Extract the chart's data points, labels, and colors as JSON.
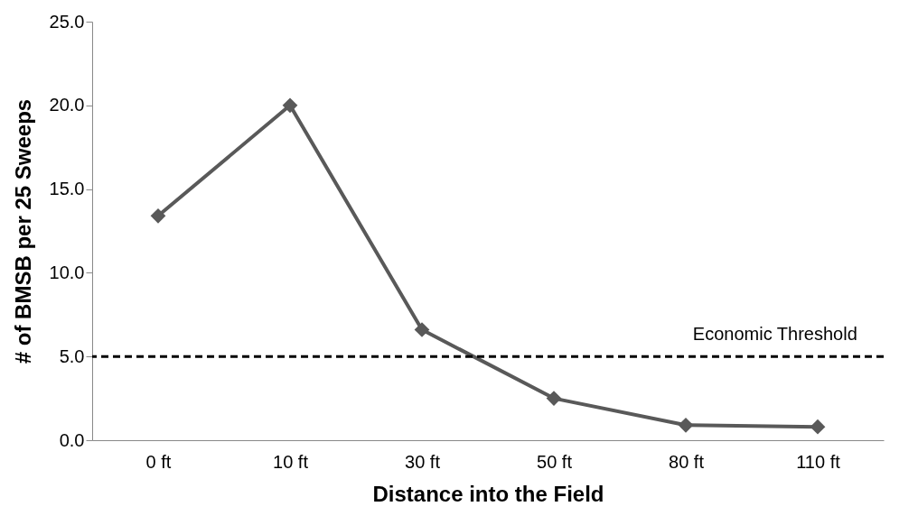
{
  "chart_data": {
    "type": "line",
    "xlabel": "Distance into the Field",
    "ylabel": "# of BMSB per 25 Sweeps",
    "categories": [
      "0 ft",
      "10 ft",
      "30 ft",
      "50 ft",
      "80 ft",
      "110 ft"
    ],
    "series": [
      {
        "color": "#595959",
        "values": [
          13.4,
          20.0,
          6.6,
          2.5,
          0.9,
          0.8
        ]
      }
    ],
    "ylim": [
      0,
      25
    ],
    "yticks": [
      {
        "value": 0,
        "label": "0.0"
      },
      {
        "value": 5,
        "label": "5.0"
      },
      {
        "value": 10,
        "label": "10.0"
      },
      {
        "value": 15,
        "label": "15.0"
      },
      {
        "value": 20,
        "label": "20.0"
      },
      {
        "value": 25,
        "label": "25.0"
      }
    ],
    "ref_lines": [
      {
        "axis": "y",
        "value": 5,
        "label": "Economic Threshold",
        "color": "#000000",
        "line_style": "dashed"
      }
    ],
    "grid": false,
    "marker": "diamond",
    "line_style": "solid"
  }
}
